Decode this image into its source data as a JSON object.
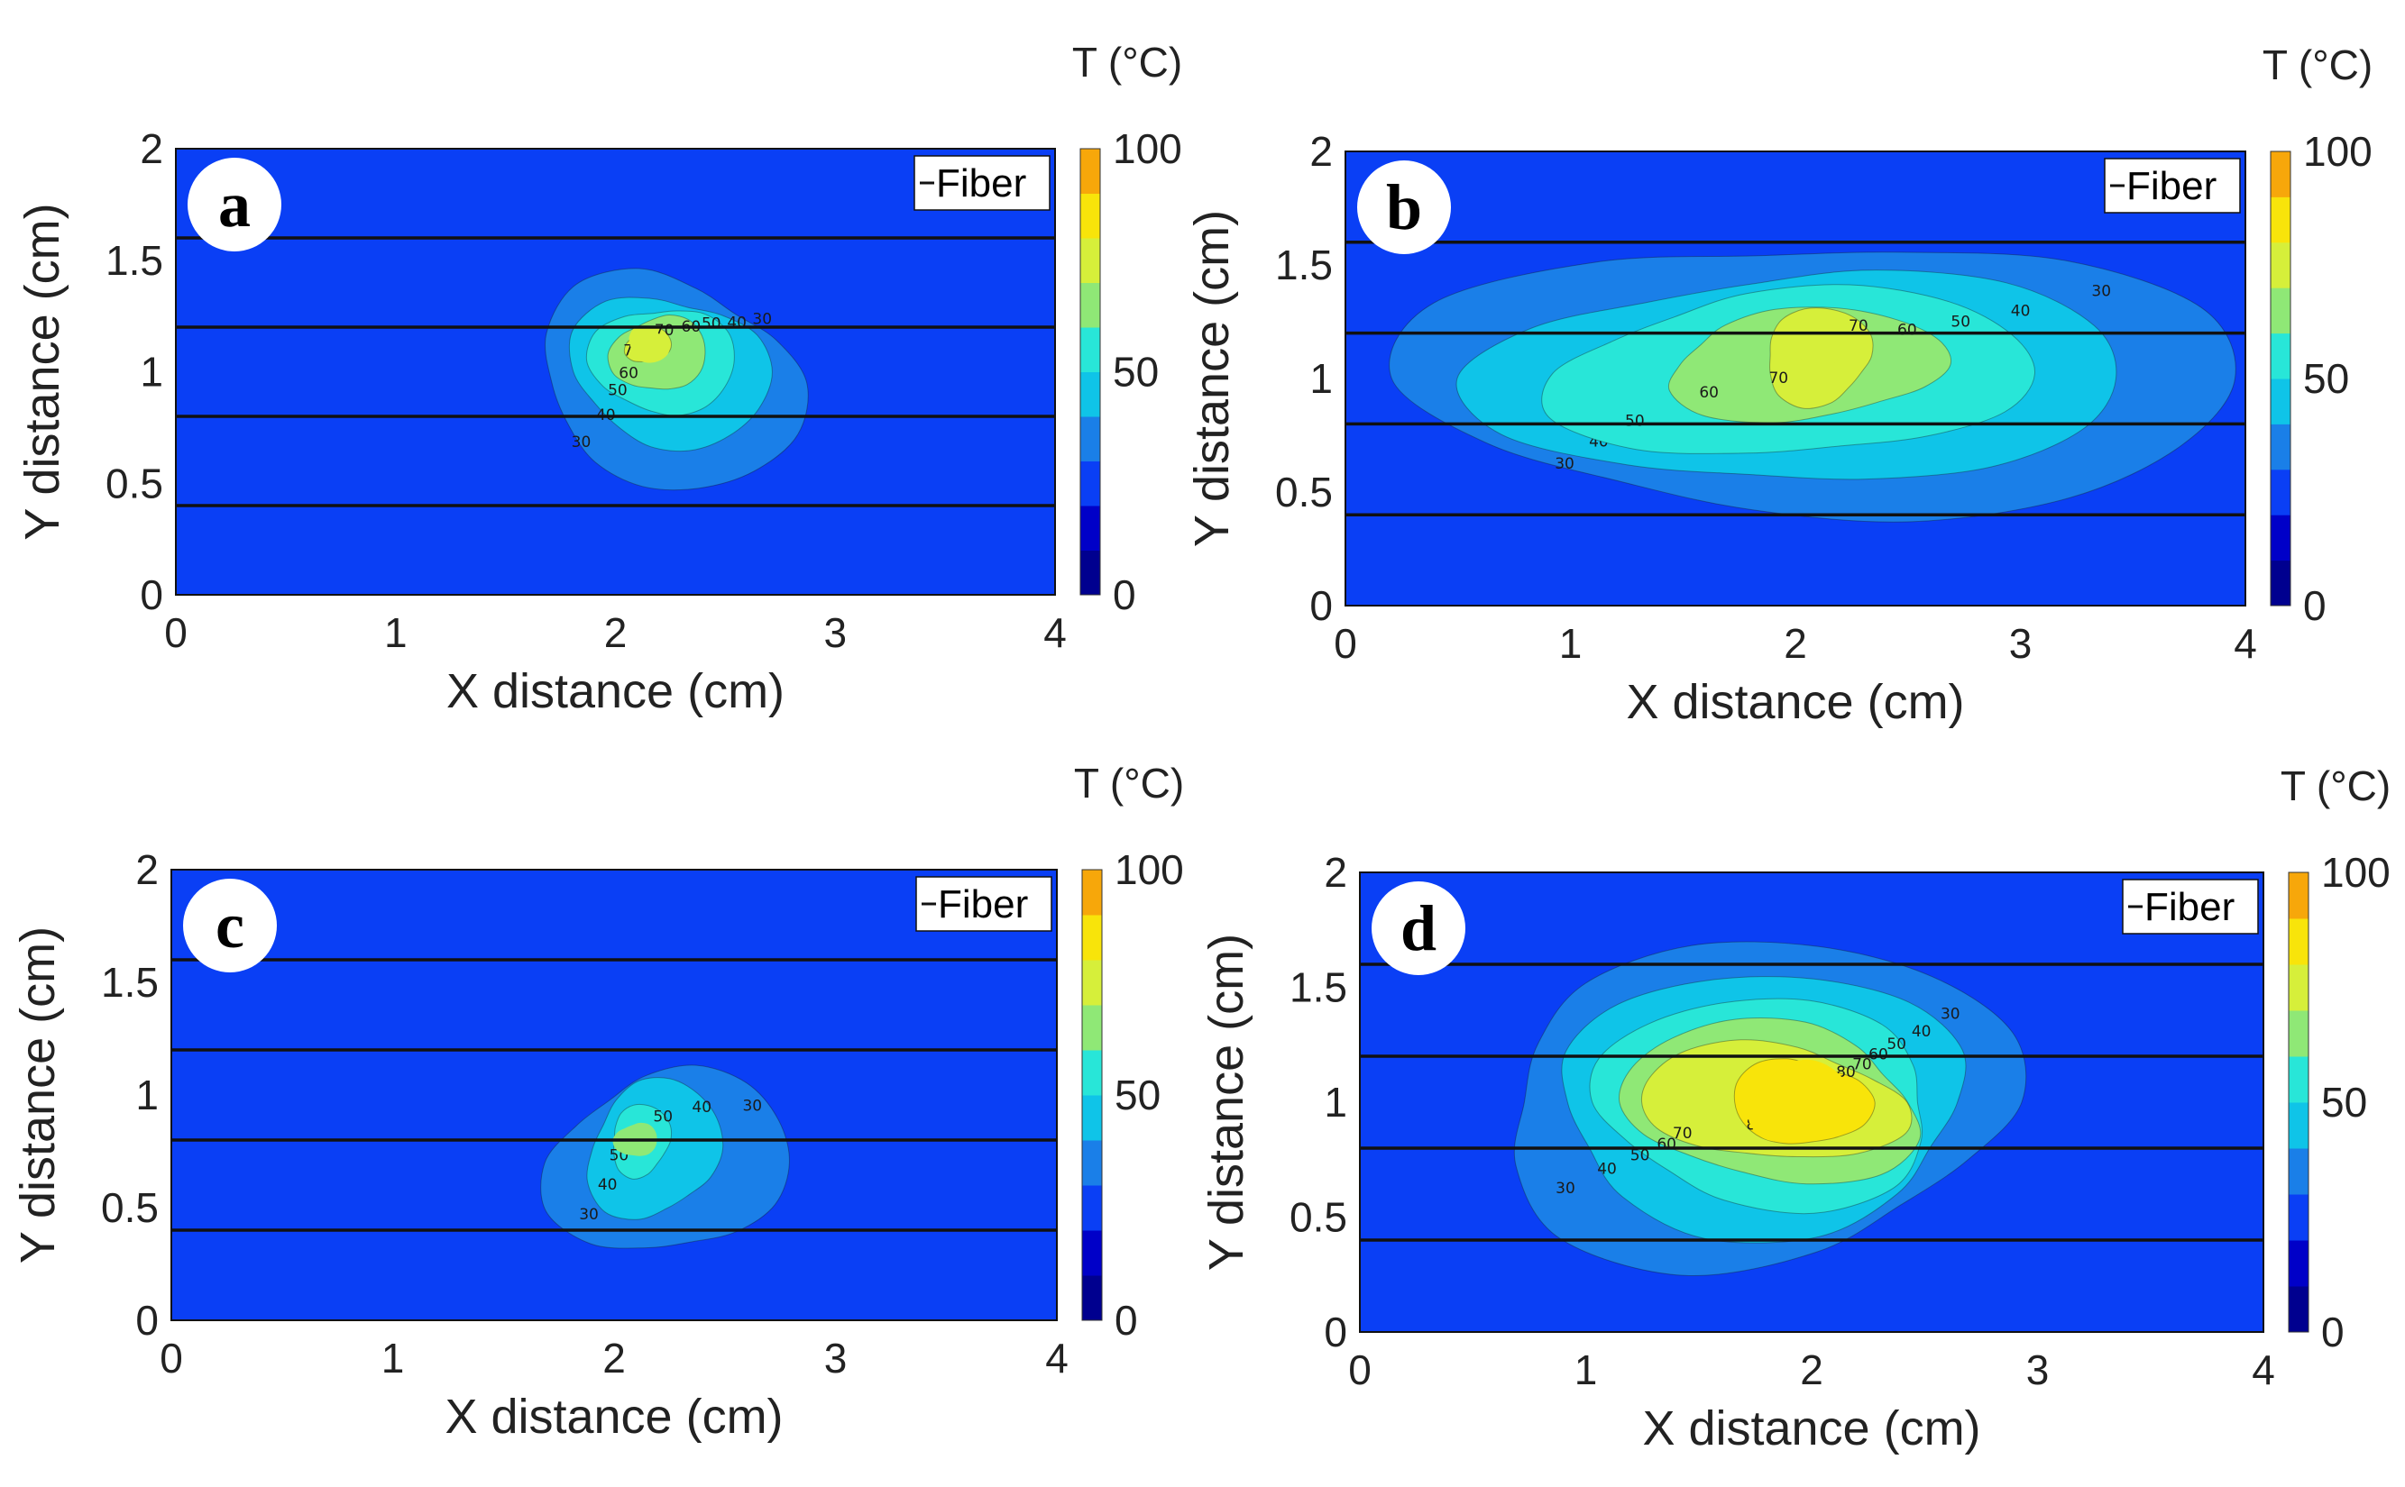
{
  "chart_data": [
    {
      "panel": "a",
      "type": "heatmap",
      "xlabel": "X distance (cm)",
      "ylabel": "Y distance (cm)",
      "xlim": [
        0,
        4
      ],
      "ylim": [
        0,
        2
      ],
      "xticks": [
        "0",
        "1",
        "2",
        "3",
        "4"
      ],
      "yticks": [
        "0",
        "0.5",
        "1",
        "1.5",
        "2"
      ],
      "colorbar": {
        "title": "T (°C)",
        "range": [
          0,
          100
        ],
        "ticks": [
          "0",
          "50",
          "100"
        ]
      },
      "legend": "Fiber",
      "fiber_y": [
        0.4,
        0.8,
        1.2,
        1.6
      ],
      "background": 20,
      "peak": {
        "x": 2.15,
        "y": 1.12,
        "value": 75
      },
      "contours": [
        {
          "level": 30,
          "rx": 0.58,
          "ry": 0.48,
          "cx": 2.25,
          "cy": 0.95
        },
        {
          "level": 40,
          "rx": 0.42,
          "ry": 0.36,
          "cx": 2.25,
          "cy": 1.0
        },
        {
          "level": 50,
          "rx": 0.3,
          "ry": 0.26,
          "cx": 2.22,
          "cy": 1.05
        },
        {
          "level": 60,
          "rx": 0.2,
          "ry": 0.18,
          "cx": 2.2,
          "cy": 1.08
        },
        {
          "level": 70,
          "rx": 0.1,
          "ry": 0.08,
          "cx": 2.15,
          "cy": 1.12
        }
      ]
    },
    {
      "panel": "b",
      "type": "heatmap",
      "xlabel": "X distance (cm)",
      "ylabel": "Y distance (cm)",
      "xlim": [
        0,
        4
      ],
      "ylim": [
        0,
        2
      ],
      "xticks": [
        "0",
        "1",
        "2",
        "3",
        "4"
      ],
      "yticks": [
        "0",
        "0.5",
        "1",
        "1.5",
        "2"
      ],
      "colorbar": {
        "title": "T (°C)",
        "range": [
          0,
          100
        ],
        "ticks": [
          "0",
          "50",
          "100"
        ]
      },
      "legend": "Fiber",
      "fiber_y": [
        0.4,
        0.8,
        1.2,
        1.6
      ],
      "background": 20,
      "peak": {
        "x": 2.1,
        "y": 1.12,
        "value": 75
      },
      "contours": [
        {
          "level": 30,
          "rx": 1.68,
          "ry": 0.66,
          "cx": 2.15,
          "cy": 1.0
        },
        {
          "level": 40,
          "rx": 1.32,
          "ry": 0.5,
          "cx": 2.05,
          "cy": 1.0
        },
        {
          "level": 50,
          "rx": 1.02,
          "ry": 0.38,
          "cx": 2.0,
          "cy": 1.02
        },
        {
          "level": 60,
          "rx": 0.62,
          "ry": 0.24,
          "cx": 2.05,
          "cy": 1.06
        },
        {
          "level": 70,
          "rx": 0.25,
          "ry": 0.2,
          "cx": 2.1,
          "cy": 1.1
        }
      ]
    },
    {
      "panel": "c",
      "type": "heatmap",
      "xlabel": "X distance (cm)",
      "ylabel": "Y distance (cm)",
      "xlim": [
        0,
        4
      ],
      "ylim": [
        0,
        2
      ],
      "xticks": [
        "0",
        "1",
        "2",
        "3",
        "4"
      ],
      "yticks": [
        "0",
        "0.5",
        "1",
        "1.5",
        "2"
      ],
      "colorbar": {
        "title": "T (°C)",
        "range": [
          0,
          100
        ],
        "ticks": [
          "0",
          "50",
          "100"
        ]
      },
      "legend": "Fiber",
      "fiber_y": [
        0.4,
        0.8,
        1.2,
        1.6
      ],
      "background": 20,
      "peak": {
        "x": 2.1,
        "y": 0.8,
        "value": 60
      },
      "contours": [
        {
          "level": 30,
          "rx": 0.52,
          "ry": 0.42,
          "cx": 2.25,
          "cy": 0.7
        },
        {
          "level": 40,
          "rx": 0.3,
          "ry": 0.3,
          "cx": 2.18,
          "cy": 0.76
        },
        {
          "level": 50,
          "rx": 0.14,
          "ry": 0.15,
          "cx": 2.12,
          "cy": 0.8
        }
      ]
    },
    {
      "panel": "d",
      "type": "heatmap",
      "xlabel": "X distance (cm)",
      "ylabel": "Y distance (cm)",
      "xlim": [
        0,
        4
      ],
      "ylim": [
        0,
        2
      ],
      "xticks": [
        "0",
        "1",
        "2",
        "3",
        "4"
      ],
      "yticks": [
        "0",
        "0.5",
        "1",
        "1.5",
        "2"
      ],
      "colorbar": {
        "title": "T (°C)",
        "range": [
          0,
          100
        ],
        "ticks": [
          "0",
          "50",
          "100"
        ]
      },
      "legend": "Fiber",
      "fiber_y": [
        0.4,
        0.8,
        1.2,
        1.6
      ],
      "background": 20,
      "peak": {
        "x": 1.95,
        "y": 1.0,
        "value": 85
      },
      "contours": [
        {
          "level": 30,
          "rx": 1.2,
          "ry": 0.66,
          "cx": 1.75,
          "cy": 1.0
        },
        {
          "level": 40,
          "rx": 0.98,
          "ry": 0.52,
          "cx": 1.78,
          "cy": 1.0
        },
        {
          "level": 50,
          "rx": 0.8,
          "ry": 0.42,
          "cx": 1.8,
          "cy": 1.0
        },
        {
          "level": 60,
          "rx": 0.66,
          "ry": 0.34,
          "cx": 1.82,
          "cy": 1.0
        },
        {
          "level": 70,
          "rx": 0.56,
          "ry": 0.26,
          "cx": 1.82,
          "cy": 1.0
        },
        {
          "level": 80,
          "rx": 0.28,
          "ry": 0.2,
          "cx": 1.95,
          "cy": 1.0
        }
      ]
    }
  ]
}
